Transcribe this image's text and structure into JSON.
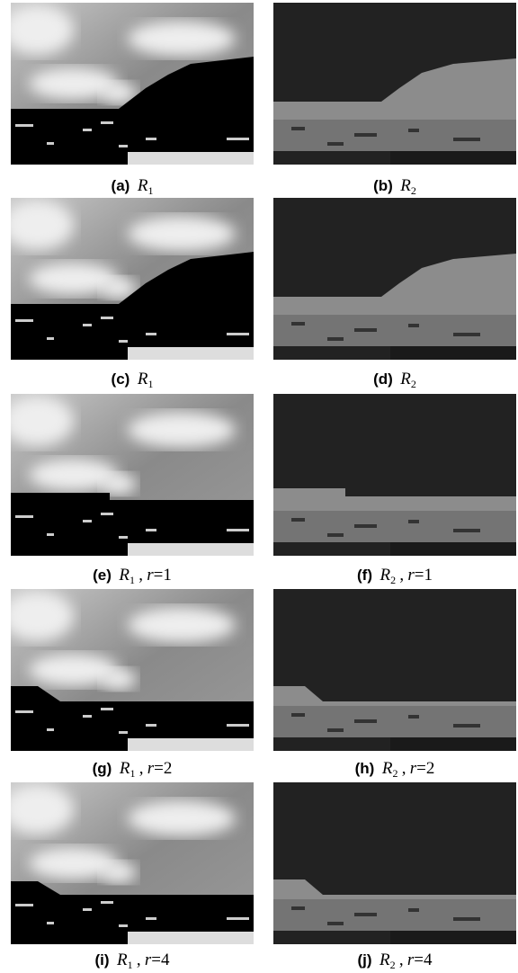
{
  "panels": [
    {
      "tag": "(a)",
      "var": "R",
      "sub": "1"
    },
    {
      "tag": "(b)",
      "var": "R",
      "sub": "2"
    },
    {
      "tag": "(c)",
      "var": "R",
      "sub": "1"
    },
    {
      "tag": "(d)",
      "var": "R",
      "sub": "2"
    },
    {
      "tag": "(e)",
      "var": "R",
      "sub": "1",
      "sep": ",",
      "pvar": "r",
      "pval": "=1"
    },
    {
      "tag": "(f)",
      "var": "R",
      "sub": "2",
      "sep": ",",
      "pvar": "r",
      "pval": "=1"
    },
    {
      "tag": "(g)",
      "var": "R",
      "sub": "1",
      "sep": ",",
      "pvar": "r",
      "pval": "=2"
    },
    {
      "tag": "(h)",
      "var": "R",
      "sub": "2",
      "sep": ",",
      "pvar": "r",
      "pval": "=2"
    },
    {
      "tag": "(i)",
      "var": "R",
      "sub": "1",
      "sep": ",",
      "pvar": "r",
      "pval": "=4"
    },
    {
      "tag": "(j)",
      "var": "R",
      "sub": "2",
      "sep": ",",
      "pvar": "r",
      "pval": "=4"
    }
  ]
}
